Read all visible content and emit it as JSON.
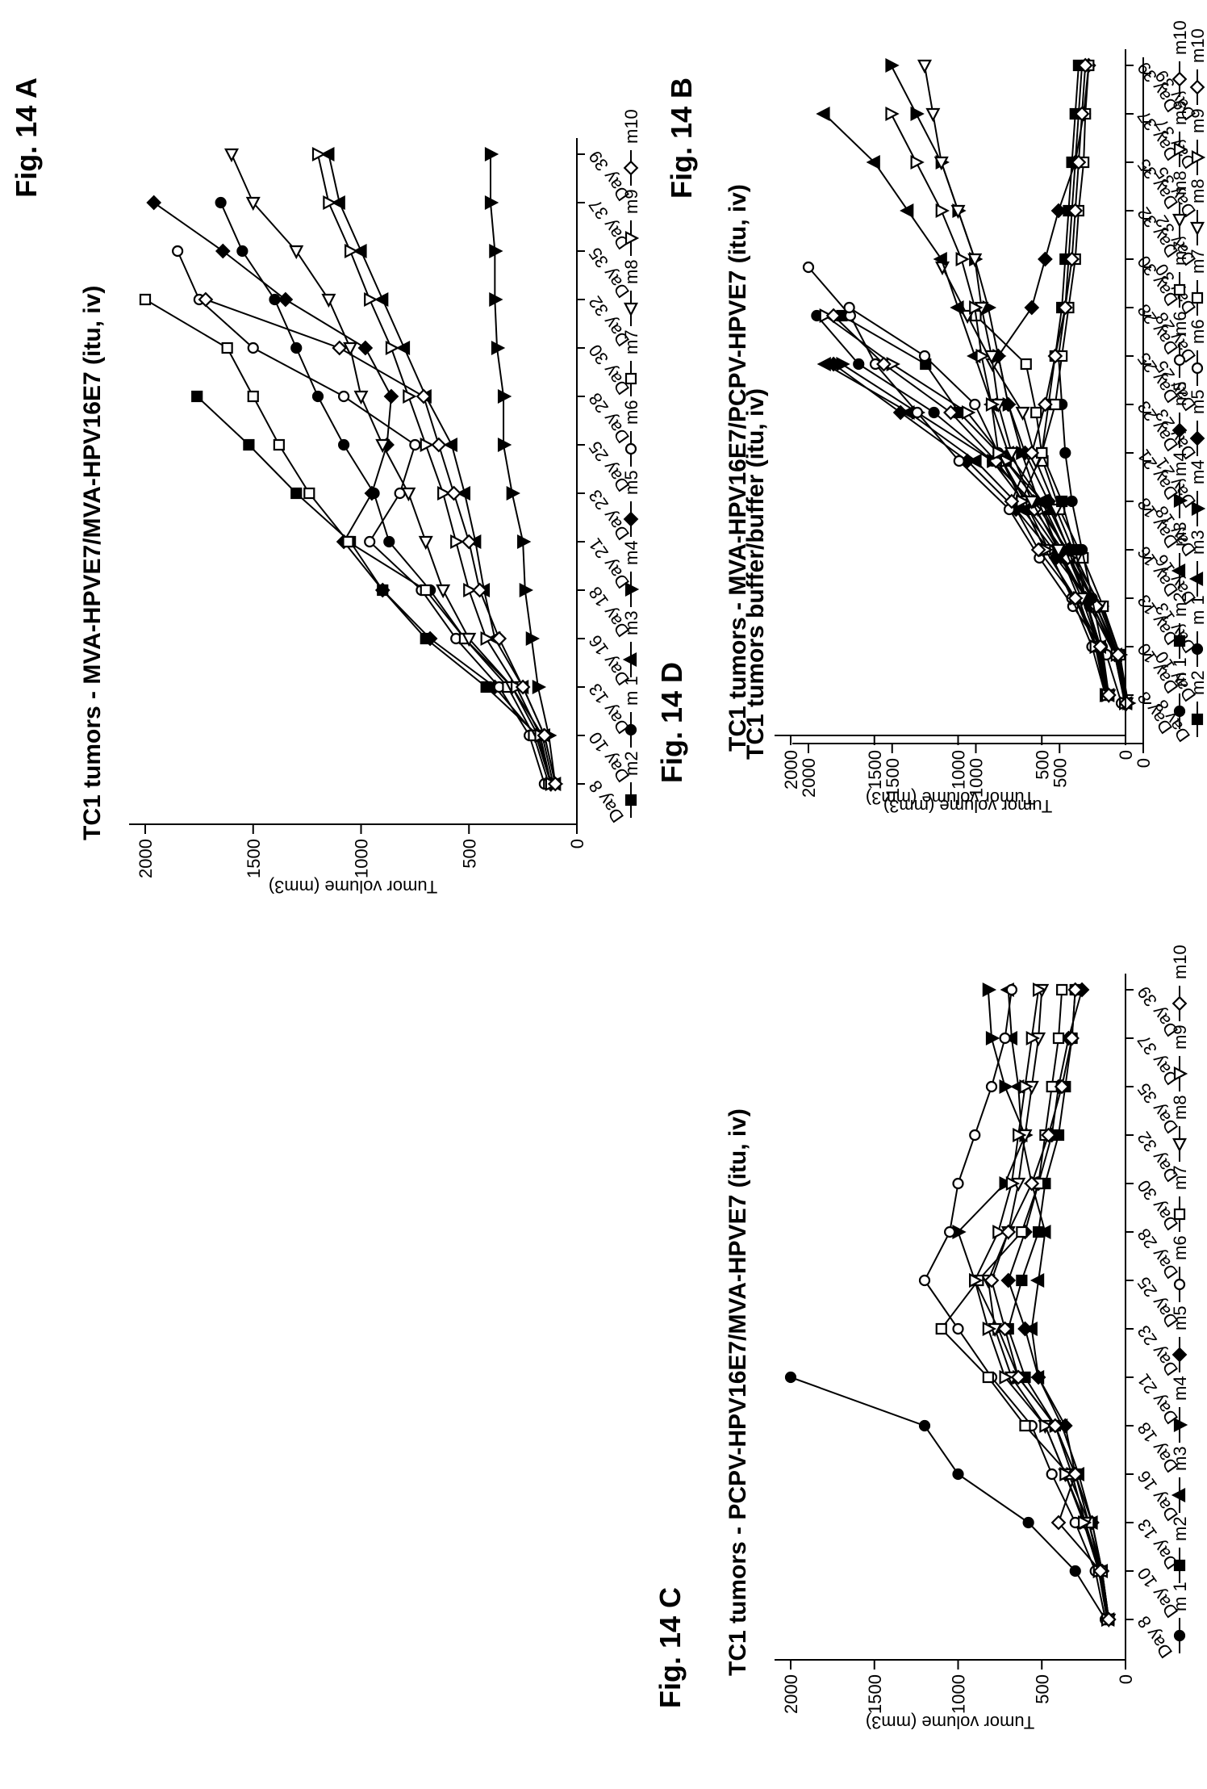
{
  "figure_labels": {
    "a": "Fig. 14 A",
    "b": "Fig. 14 B",
    "c": "Fig. 14 C",
    "d": "Fig. 14 D"
  },
  "chart_data": [
    {
      "id": "A",
      "type": "line",
      "title": "TC1 tumors - MVA-HPVE7/MVA-HPV16E7 (itu, iv)",
      "xlabel": "",
      "ylabel": "Tumor volume (mm3)",
      "ylim": [
        0,
        2000
      ],
      "yticks": [
        0,
        500,
        1000,
        1500,
        2000
      ],
      "categories": [
        "Day 8",
        "Day 10",
        "Day 13",
        "Day 16",
        "Day 18",
        "Day 21",
        "Day 23",
        "Day 25",
        "Day 28",
        "Day 30",
        "Day 32",
        "Day 35",
        "Day 37",
        "Day 39"
      ],
      "legend_position": "right",
      "series": [
        {
          "name": "m2",
          "marker": "square",
          "values": [
            120,
            180,
            420,
            700,
            900,
            1050,
            1300,
            1520,
            1760,
            null,
            null,
            null,
            null,
            null
          ]
        },
        {
          "name": "m 1",
          "marker": "circle",
          "values": [
            110,
            160,
            300,
            520,
            680,
            870,
            940,
            1080,
            1200,
            1300,
            1400,
            1550,
            1650,
            null
          ]
        },
        {
          "name": "m3",
          "marker": "triangle-up",
          "values": [
            100,
            150,
            250,
            380,
            430,
            470,
            520,
            580,
            700,
            800,
            900,
            1000,
            1100,
            1150
          ]
        },
        {
          "name": "m4",
          "marker": "triangle-down",
          "values": [
            100,
            130,
            180,
            210,
            240,
            250,
            300,
            340,
            340,
            370,
            380,
            380,
            400,
            400
          ]
        },
        {
          "name": "m5",
          "marker": "diamond",
          "values": [
            120,
            190,
            380,
            680,
            900,
            1080,
            950,
            880,
            860,
            980,
            1350,
            1640,
            1960,
            null
          ]
        },
        {
          "name": "m6",
          "marker": "circle-open",
          "values": [
            150,
            220,
            360,
            560,
            720,
            960,
            820,
            750,
            1080,
            1500,
            1750,
            1850,
            null,
            null
          ]
        },
        {
          "name": "m7",
          "marker": "square-open",
          "values": [
            130,
            200,
            320,
            520,
            700,
            1060,
            1240,
            1380,
            1500,
            1620,
            2000,
            null,
            null,
            null
          ]
        },
        {
          "name": "m8",
          "marker": "triangle-left-open",
          "values": [
            120,
            180,
            300,
            500,
            620,
            700,
            780,
            900,
            1000,
            1050,
            1150,
            1300,
            1500,
            1600
          ]
        },
        {
          "name": "m9",
          "marker": "triangle-down-open",
          "values": [
            120,
            170,
            280,
            420,
            500,
            560,
            620,
            700,
            780,
            860,
            960,
            1050,
            1150,
            1200
          ]
        },
        {
          "name": "m10",
          "marker": "diamond-open",
          "values": [
            100,
            150,
            250,
            360,
            450,
            500,
            570,
            640,
            710,
            1100,
            1720,
            null,
            null,
            null
          ]
        }
      ]
    },
    {
      "id": "B",
      "type": "line",
      "title": "TC1 tumors  buffer/buffer (itu, iv)",
      "xlabel": "",
      "ylabel": "Tumor volume (mm3)",
      "ylim": [
        0,
        2000
      ],
      "yticks": [
        0,
        500,
        1000,
        1500,
        2000
      ],
      "categories": [
        "Day 8",
        "Day 10",
        "Day 13",
        "Day 16",
        "Day 18",
        "Day 21",
        "Day 23",
        "Day 25",
        "Day 28",
        "Day 30",
        "Day 32",
        "Day 35",
        "Day 37",
        "Day 39"
      ],
      "legend_position": "right",
      "series": [
        {
          "name": "m2",
          "marker": "square",
          "values": [
            100,
            150,
            280,
            420,
            560,
            820,
            1100,
            1300,
            1800,
            null,
            null,
            null,
            null,
            null
          ]
        },
        {
          "name": "m 1",
          "marker": "circle",
          "values": [
            110,
            170,
            320,
            480,
            680,
            900,
            1250,
            1700,
            1950,
            null,
            null,
            null,
            null,
            null
          ]
        },
        {
          "name": "m3",
          "marker": "triangle-up",
          "values": [
            100,
            160,
            300,
            500,
            720,
            1000,
            1400,
            1900,
            null,
            null,
            null,
            null,
            null,
            null
          ]
        },
        {
          "name": "m4",
          "marker": "triangle-down",
          "values": [
            90,
            140,
            250,
            420,
            620,
            900,
            1350,
            1800,
            null,
            null,
            null,
            null,
            null,
            null
          ]
        },
        {
          "name": "m5",
          "marker": "diamond",
          "values": [
            110,
            170,
            300,
            520,
            760,
            1050,
            1450,
            1850,
            null,
            null,
            null,
            null,
            null,
            null
          ]
        },
        {
          "name": "m6",
          "marker": "circle-open",
          "values": [
            130,
            220,
            420,
            620,
            800,
            1100,
            1350,
            1600,
            1750,
            2000,
            null,
            null,
            null,
            null
          ]
        },
        {
          "name": "m7",
          "marker": "square-open",
          "values": [
            100,
            140,
            240,
            360,
            500,
            600,
            640,
            700,
            1000,
            null,
            null,
            null,
            null,
            null
          ]
        },
        {
          "name": "m8",
          "marker": "triangle-left-open",
          "values": [
            100,
            150,
            260,
            400,
            520,
            640,
            720,
            900,
            1050,
            1200,
            null,
            null,
            null,
            null
          ]
        },
        {
          "name": "m9",
          "marker": "triangle-down-open",
          "values": [
            110,
            160,
            280,
            440,
            600,
            820,
            1050,
            1500,
            1900,
            null,
            null,
            null,
            null,
            null
          ]
        },
        {
          "name": "m10",
          "marker": "diamond-open",
          "values": [
            100,
            150,
            280,
            450,
            650,
            880,
            1150,
            1550,
            1850,
            null,
            null,
            null,
            null,
            null
          ]
        }
      ]
    },
    {
      "id": "C",
      "type": "line",
      "title": "TC1 tumors - PCPV-HPV16E7/MVA-HPVE7 (itu, iv)",
      "xlabel": "",
      "ylabel": "Tumor volume (mm3)",
      "ylim": [
        0,
        2000
      ],
      "yticks": [
        0,
        500,
        1000,
        1500,
        2000
      ],
      "categories": [
        "Day 8",
        "Day 10",
        "Day 13",
        "Day 16",
        "Day 18",
        "Day 21",
        "Day 23",
        "Day 25",
        "Day 28",
        "Day 30",
        "Day 32",
        "Day 35",
        "Day 37",
        "Day 39"
      ],
      "legend_position": "right",
      "series": [
        {
          "name": "m 1",
          "marker": "circle",
          "values": [
            120,
            300,
            580,
            1000,
            1200,
            2000,
            null,
            null,
            null,
            null,
            null,
            null,
            null,
            null
          ]
        },
        {
          "name": "m2",
          "marker": "square",
          "values": [
            100,
            150,
            220,
            300,
            420,
            600,
            700,
            620,
            520,
            480,
            400,
            360,
            320,
            300
          ]
        },
        {
          "name": "m3",
          "marker": "triangle-up",
          "values": [
            100,
            140,
            200,
            280,
            380,
            520,
            560,
            520,
            480,
            560,
            620,
            640,
            680,
            700
          ]
        },
        {
          "name": "m4",
          "marker": "triangle-down",
          "values": [
            110,
            160,
            240,
            320,
            420,
            640,
            760,
            900,
            1000,
            720,
            600,
            720,
            800,
            820
          ]
        },
        {
          "name": "m5",
          "marker": "diamond",
          "values": [
            100,
            140,
            200,
            300,
            360,
            520,
            600,
            700,
            600,
            520,
            440,
            400,
            340,
            260
          ]
        },
        {
          "name": "m6",
          "marker": "circle-open",
          "values": [
            120,
            180,
            300,
            440,
            560,
            800,
            1000,
            1200,
            1050,
            1000,
            900,
            800,
            720,
            680
          ]
        },
        {
          "name": "m7",
          "marker": "square-open",
          "values": [
            100,
            140,
            220,
            340,
            600,
            820,
            1100,
            880,
            620,
            520,
            480,
            440,
            400,
            380
          ]
        },
        {
          "name": "m8",
          "marker": "triangle-left-open",
          "values": [
            100,
            150,
            240,
            360,
            480,
            680,
            780,
            820,
            700,
            640,
            600,
            560,
            520,
            500
          ]
        },
        {
          "name": "m9",
          "marker": "triangle-down-open",
          "values": [
            110,
            160,
            250,
            360,
            480,
            720,
            820,
            900,
            760,
            680,
            640,
            600,
            560,
            520
          ]
        },
        {
          "name": "m10",
          "marker": "diamond-open",
          "values": [
            100,
            150,
            400,
            300,
            420,
            640,
            720,
            800,
            700,
            560,
            460,
            380,
            320,
            300
          ]
        }
      ]
    },
    {
      "id": "D",
      "type": "line",
      "title": "TC1 tumors - MVA-HPV16E7/PCPV-HPVE7 (itu, iv)",
      "xlabel": "",
      "ylabel": "Tumor volume (mm3)",
      "ylim": [
        0,
        2000
      ],
      "yticks": [
        0,
        500,
        1000,
        1500,
        2000
      ],
      "categories": [
        "Day 8",
        "Day 10",
        "Day 13",
        "Day 16",
        "Day 18",
        "Day 21",
        "Day 23",
        "Day 25",
        "Day 28",
        "Day 30",
        "Day 32",
        "Day 35",
        "Day 37",
        "Day 39"
      ],
      "legend_position": "right",
      "series": [
        {
          "name": "m 1",
          "marker": "circle",
          "values": [
            100,
            140,
            200,
            260,
            320,
            360,
            380,
            400,
            360,
            340,
            320,
            300,
            280,
            260
          ]
        },
        {
          "name": "m2",
          "marker": "square",
          "values": [
            110,
            160,
            240,
            300,
            380,
            500,
            460,
            420,
            380,
            360,
            340,
            320,
            300,
            280
          ]
        },
        {
          "name": "m3",
          "marker": "triangle-up",
          "values": [
            100,
            150,
            240,
            360,
            500,
            700,
            800,
            900,
            1000,
            1100,
            1300,
            1500,
            1800,
            null
          ]
        },
        {
          "name": "m4",
          "marker": "triangle-down",
          "values": [
            120,
            180,
            280,
            400,
            520,
            620,
            700,
            760,
            820,
            900,
            1000,
            1100,
            1250,
            1400
          ]
        },
        {
          "name": "m5",
          "marker": "diamond",
          "values": [
            100,
            150,
            240,
            340,
            460,
            600,
            700,
            760,
            560,
            480,
            400,
            300,
            250,
            220
          ]
        },
        {
          "name": "m6",
          "marker": "circle-open",
          "values": [
            120,
            200,
            320,
            460,
            600,
            760,
            900,
            1200,
            1650,
            null,
            null,
            null,
            null,
            null
          ]
        },
        {
          "name": "m7",
          "marker": "square-open",
          "values": [
            110,
            170,
            300,
            480,
            620,
            500,
            420,
            380,
            340,
            300,
            280,
            250,
            240,
            220
          ]
        },
        {
          "name": "m8",
          "marker": "triangle-left-open",
          "values": [
            100,
            160,
            260,
            400,
            560,
            680,
            760,
            800,
            860,
            900,
            1000,
            1100,
            1150,
            1200
          ]
        },
        {
          "name": "m9",
          "marker": "triangle-down-open",
          "values": [
            110,
            180,
            300,
            480,
            620,
            760,
            800,
            860,
            900,
            980,
            1100,
            1250,
            1400,
            null
          ]
        },
        {
          "name": "m10",
          "marker": "diamond-open",
          "values": [
            100,
            150,
            300,
            520,
            680,
            560,
            480,
            420,
            360,
            320,
            300,
            280,
            260,
            240
          ]
        }
      ]
    }
  ]
}
